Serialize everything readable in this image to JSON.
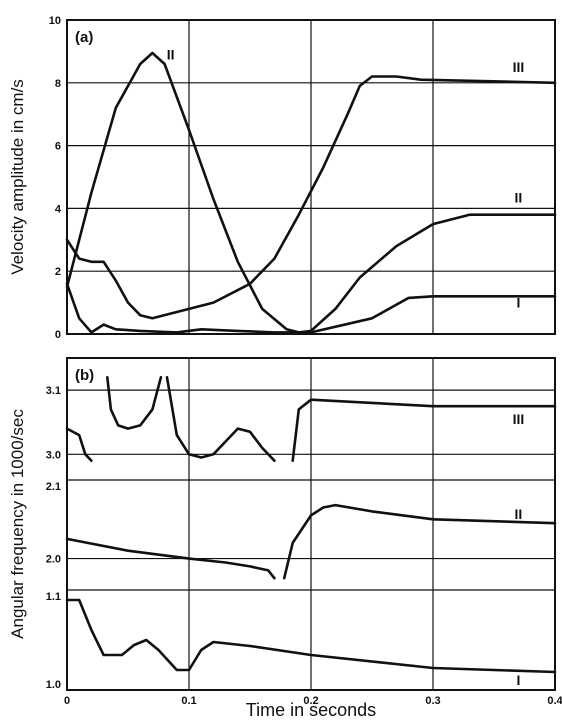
{
  "chart_data": [
    {
      "panel": "(a)",
      "type": "line",
      "xlabel": "Time in seconds",
      "ylabel": "Velocity amplitude in cm/s",
      "xlim": [
        0,
        0.4
      ],
      "ylim": [
        0,
        10
      ],
      "x_ticks": [
        "0",
        "0.1",
        "0.2",
        "0.3",
        "0.4"
      ],
      "y_ticks": [
        "0",
        "2",
        "4",
        "6",
        "8",
        "10"
      ],
      "grid": true,
      "series": [
        {
          "name": "I",
          "points": [
            [
              0,
              1.6
            ],
            [
              0.01,
              0.5
            ],
            [
              0.02,
              0.05
            ],
            [
              0.03,
              0.3
            ],
            [
              0.04,
              0.15
            ],
            [
              0.06,
              0.1
            ],
            [
              0.09,
              0.05
            ],
            [
              0.11,
              0.15
            ],
            [
              0.14,
              0.1
            ],
            [
              0.17,
              0.05
            ],
            [
              0.2,
              0.05
            ],
            [
              0.25,
              0.5
            ],
            [
              0.28,
              1.15
            ],
            [
              0.3,
              1.2
            ],
            [
              0.4,
              1.2
            ]
          ],
          "label_at": [
            0.37,
            1.0
          ]
        },
        {
          "name": "II",
          "points": [
            [
              0,
              1.5
            ],
            [
              0.02,
              4.5
            ],
            [
              0.04,
              7.2
            ],
            [
              0.06,
              8.6
            ],
            [
              0.07,
              8.95
            ],
            [
              0.08,
              8.6
            ],
            [
              0.1,
              6.5
            ],
            [
              0.12,
              4.3
            ],
            [
              0.14,
              2.3
            ],
            [
              0.16,
              0.8
            ],
            [
              0.18,
              0.15
            ],
            [
              0.19,
              0.05
            ],
            [
              0.2,
              0.1
            ],
            [
              0.22,
              0.8
            ],
            [
              0.24,
              1.8
            ],
            [
              0.27,
              2.8
            ],
            [
              0.3,
              3.5
            ],
            [
              0.33,
              3.8
            ],
            [
              0.4,
              3.8
            ]
          ],
          "label_at": [
            0.37,
            4.35
          ]
        },
        {
          "name": "III",
          "points": [
            [
              0,
              3.0
            ],
            [
              0.01,
              2.4
            ],
            [
              0.02,
              2.3
            ],
            [
              0.03,
              2.3
            ],
            [
              0.04,
              1.7
            ],
            [
              0.05,
              1.0
            ],
            [
              0.06,
              0.6
            ],
            [
              0.07,
              0.5
            ],
            [
              0.09,
              0.7
            ],
            [
              0.12,
              1.0
            ],
            [
              0.15,
              1.6
            ],
            [
              0.17,
              2.4
            ],
            [
              0.19,
              3.8
            ],
            [
              0.21,
              5.3
            ],
            [
              0.23,
              7.0
            ],
            [
              0.24,
              7.9
            ],
            [
              0.25,
              8.2
            ],
            [
              0.27,
              8.2
            ],
            [
              0.29,
              8.1
            ],
            [
              0.4,
              8.0
            ]
          ],
          "label_at": [
            0.37,
            8.5
          ]
        }
      ],
      "annotations": [
        {
          "text": "II",
          "x": 0.085,
          "y": 8.9
        }
      ]
    },
    {
      "panel": "(b)",
      "type": "line",
      "xlabel": "Time in seconds",
      "ylabel": "Angular frequency in 1000/sec",
      "xlim": [
        0,
        0.4
      ],
      "x_ticks": [
        "0",
        "0.1",
        "0.2",
        "0.3",
        "0.4"
      ],
      "grid": true,
      "subpanels": [
        {
          "ylim": [
            2.96,
            3.15
          ],
          "y_ticks": [
            "3.0",
            "3.1"
          ],
          "series": [
            {
              "name": "III",
              "segments": [
                [
                  [
                    0,
                    3.04
                  ],
                  [
                    0.01,
                    3.03
                  ],
                  [
                    0.015,
                    3.0
                  ],
                  [
                    0.02,
                    2.99
                  ]
                ],
                [
                  [
                    0.033,
                    3.12
                  ],
                  [
                    0.036,
                    3.07
                  ],
                  [
                    0.042,
                    3.045
                  ],
                  [
                    0.05,
                    3.04
                  ],
                  [
                    0.06,
                    3.045
                  ],
                  [
                    0.07,
                    3.07
                  ],
                  [
                    0.077,
                    3.12
                  ]
                ],
                [
                  [
                    0.082,
                    3.12
                  ],
                  [
                    0.09,
                    3.03
                  ],
                  [
                    0.1,
                    3.0
                  ],
                  [
                    0.11,
                    2.995
                  ],
                  [
                    0.12,
                    3.0
                  ],
                  [
                    0.13,
                    3.02
                  ],
                  [
                    0.14,
                    3.04
                  ],
                  [
                    0.15,
                    3.035
                  ],
                  [
                    0.16,
                    3.01
                  ],
                  [
                    0.17,
                    2.99
                  ]
                ],
                [
                  [
                    0.185,
                    2.99
                  ],
                  [
                    0.19,
                    3.07
                  ],
                  [
                    0.2,
                    3.085
                  ],
                  [
                    0.25,
                    3.08
                  ],
                  [
                    0.3,
                    3.075
                  ],
                  [
                    0.4,
                    3.075
                  ]
                ]
              ]
            }
          ],
          "label_at": [
            0.37,
            3.055
          ]
        },
        {
          "ylim": [
            1.96,
            2.1
          ],
          "y_ticks": [
            "2.0",
            "2.1"
          ],
          "series": [
            {
              "name": "II",
              "segments": [
                [
                  [
                    0,
                    2.025
                  ],
                  [
                    0.05,
                    2.01
                  ],
                  [
                    0.1,
                    2.0
                  ],
                  [
                    0.13,
                    1.995
                  ],
                  [
                    0.15,
                    1.99
                  ],
                  [
                    0.165,
                    1.985
                  ],
                  [
                    0.17,
                    1.975
                  ]
                ],
                [
                  [
                    0.178,
                    1.975
                  ],
                  [
                    0.185,
                    2.02
                  ],
                  [
                    0.2,
                    2.055
                  ],
                  [
                    0.21,
                    2.065
                  ],
                  [
                    0.22,
                    2.068
                  ],
                  [
                    0.25,
                    2.06
                  ],
                  [
                    0.3,
                    2.05
                  ],
                  [
                    0.4,
                    2.045
                  ]
                ]
              ]
            }
          ],
          "label_at": [
            0.37,
            2.057
          ]
        },
        {
          "ylim": [
            1.0,
            1.1
          ],
          "y_ticks": [
            "1.0",
            "1.1"
          ],
          "series": [
            {
              "name": "I",
              "segments": [
                [
                  [
                    0,
                    1.09
                  ],
                  [
                    0.01,
                    1.09
                  ],
                  [
                    0.02,
                    1.06
                  ],
                  [
                    0.03,
                    1.035
                  ],
                  [
                    0.045,
                    1.035
                  ],
                  [
                    0.055,
                    1.045
                  ],
                  [
                    0.065,
                    1.05
                  ],
                  [
                    0.075,
                    1.04
                  ],
                  [
                    0.09,
                    1.02
                  ],
                  [
                    0.1,
                    1.02
                  ],
                  [
                    0.11,
                    1.04
                  ],
                  [
                    0.12,
                    1.048
                  ],
                  [
                    0.15,
                    1.044
                  ],
                  [
                    0.2,
                    1.035
                  ],
                  [
                    0.3,
                    1.022
                  ],
                  [
                    0.4,
                    1.018
                  ]
                ]
              ]
            }
          ],
          "label_at": [
            0.37,
            1.01
          ]
        }
      ]
    }
  ]
}
